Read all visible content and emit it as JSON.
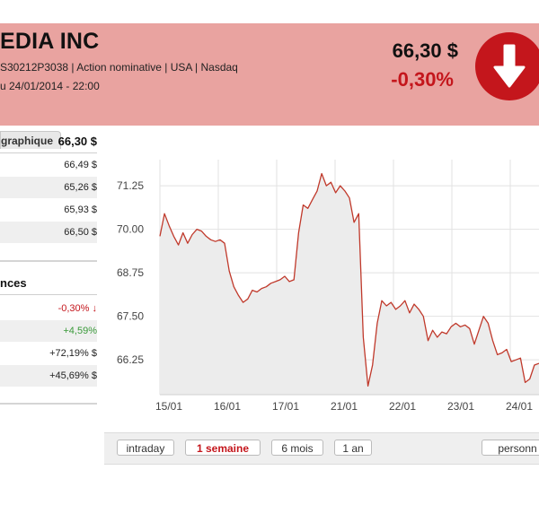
{
  "header": {
    "company_name": "EDIA INC",
    "identity_line": "S30212P3038 | Action nominative | USA | Nasdaq",
    "date_line": "u 24/01/2014 - 22:00",
    "price": "66,30 $",
    "change": "-0,30%",
    "trend_icon": "arrow-down-icon",
    "trend_color": "#c4161c",
    "bg_color": "#e9a3a0"
  },
  "tabs": [
    {
      "label": "graphique"
    }
  ],
  "quote": {
    "last": "66,30 $",
    "rows": [
      "66,49 $",
      "65,26 $",
      "65,93 $",
      "66,50 $"
    ]
  },
  "performance": {
    "title": "nces",
    "rows": [
      {
        "value": "-0,30%",
        "trend": "down"
      },
      {
        "value": "+4,59%",
        "trend": "up"
      },
      {
        "value": "+72,19% $",
        "trend": "none"
      },
      {
        "value": "+45,69% $",
        "trend": "none"
      }
    ]
  },
  "period_buttons": [
    {
      "label": "intraday",
      "active": false
    },
    {
      "label": "1 semaine",
      "active": true
    },
    {
      "label": "6 mois",
      "active": false
    },
    {
      "label": "1 an",
      "active": false
    },
    {
      "label": "personn",
      "active": false
    }
  ],
  "chart_data": {
    "type": "area",
    "color": "#c0392b",
    "fill": "#ececec",
    "yticks": [
      "71.25",
      "70.00",
      "68.75",
      "67.50",
      "66.25"
    ],
    "ytick_values": [
      71.25,
      70.0,
      68.75,
      67.5,
      66.25
    ],
    "xticks": [
      "15/01",
      "16/01",
      "17/01",
      "21/01",
      "22/01",
      "23/01",
      "24/01"
    ],
    "ylim": [
      65.25,
      72.0
    ],
    "grid": true,
    "y": [
      69.8,
      70.45,
      70.1,
      69.8,
      69.55,
      69.9,
      69.6,
      69.85,
      70.0,
      69.95,
      69.8,
      69.7,
      69.65,
      69.7,
      69.6,
      68.8,
      68.35,
      68.1,
      67.9,
      68.0,
      68.25,
      68.2,
      68.3,
      68.35,
      68.45,
      68.5,
      68.55,
      68.65,
      68.5,
      68.55,
      69.9,
      70.7,
      70.6,
      70.85,
      71.1,
      71.6,
      71.25,
      71.35,
      71.05,
      71.25,
      71.1,
      70.9,
      70.2,
      70.45,
      66.9,
      65.5,
      66.1,
      67.3,
      67.95,
      67.8,
      67.9,
      67.7,
      67.8,
      67.95,
      67.6,
      67.85,
      67.7,
      67.5,
      66.8,
      67.1,
      66.9,
      67.05,
      67.0,
      67.2,
      67.3,
      67.2,
      67.25,
      67.15,
      66.7,
      67.1,
      67.5,
      67.3,
      66.8,
      66.4,
      66.45,
      66.55,
      66.2,
      66.25,
      66.3,
      65.6,
      65.7,
      66.1,
      66.15
    ]
  }
}
